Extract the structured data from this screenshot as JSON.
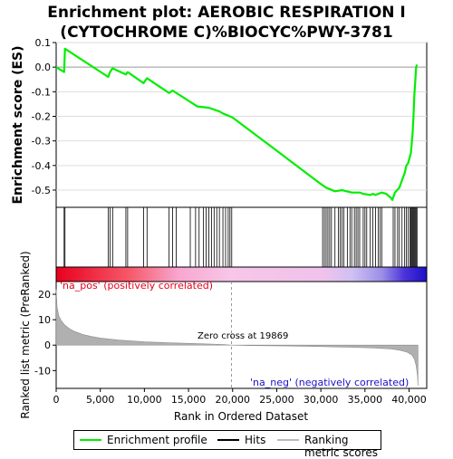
{
  "title_line1": "Enrichment plot: AEROBIC RESPIRATION I",
  "title_line2": "(CYTOCHROME C)%BIOCYC%PWY-3781",
  "chart_data": [
    {
      "type": "line",
      "ylabel": "Enrichment score (ES)",
      "ylim": [
        -0.57,
        0.1
      ],
      "yticks": [
        "0.1",
        "0.0",
        "-0.1",
        "-0.2",
        "-0.3",
        "-0.4",
        "-0.5"
      ],
      "series": [
        {
          "name": "Enrichment profile",
          "color": "#00ee00",
          "x": [
            0,
            900,
            1000,
            5900,
            6100,
            6400,
            7900,
            8100,
            9900,
            10300,
            12800,
            13200,
            16000,
            17300,
            18500,
            19000,
            19700,
            20000,
            25000,
            30000,
            30600,
            31600,
            32400,
            33500,
            34400,
            34800,
            35600,
            35900,
            36200,
            36500,
            36900,
            37400,
            37900,
            38100,
            38400,
            38900,
            39200,
            39500,
            39700,
            39900,
            40200,
            40400,
            40500,
            40600,
            40700,
            40800,
            40900
          ],
          "y": [
            0.0,
            -0.02,
            0.075,
            -0.04,
            -0.02,
            -0.005,
            -0.03,
            -0.02,
            -0.065,
            -0.045,
            -0.105,
            -0.095,
            -0.16,
            -0.165,
            -0.18,
            -0.19,
            -0.2,
            -0.205,
            -0.34,
            -0.475,
            -0.49,
            -0.505,
            -0.5,
            -0.51,
            -0.51,
            -0.515,
            -0.52,
            -0.515,
            -0.52,
            -0.515,
            -0.51,
            -0.515,
            -0.53,
            -0.54,
            -0.51,
            -0.49,
            -0.46,
            -0.43,
            -0.4,
            -0.39,
            -0.35,
            -0.27,
            -0.2,
            -0.11,
            -0.06,
            0.0,
            0.01
          ]
        }
      ],
      "hits": [
        900,
        1000,
        5900,
        6100,
        6400,
        7900,
        8100,
        9900,
        10300,
        12800,
        13200,
        13600,
        15200,
        15800,
        16200,
        16700,
        17000,
        17300,
        17600,
        17900,
        18200,
        18500,
        18900,
        19200,
        19500,
        19700,
        19900,
        30200,
        30400,
        30600,
        30800,
        31000,
        31200,
        31600,
        32000,
        32200,
        32400,
        32600,
        33000,
        33300,
        33500,
        33800,
        34000,
        34200,
        34400,
        34800,
        35000,
        35200,
        35600,
        35900,
        36200,
        36500,
        36700,
        36900,
        38200,
        38400,
        38700,
        38900,
        39200,
        39500,
        39700,
        39900,
        40100,
        40200,
        40300,
        40400,
        40500,
        40600,
        40700,
        40800,
        40900
      ]
    },
    {
      "type": "area",
      "xlabel": "Rank in Ordered Dataset",
      "ylabel": "Ranked list metric (PreRanked)",
      "xlim": [
        0,
        42000
      ],
      "ylim": [
        -17,
        25
      ],
      "xticks": [
        "0",
        "5,000",
        "10,000",
        "15,000",
        "20,000",
        "25,000",
        "30,000",
        "35,000",
        "40,000"
      ],
      "yticks": [
        "20",
        "10",
        "0",
        "-10"
      ],
      "annotations": [
        "'na_pos' (positively correlated)",
        "Zero cross at 19869",
        "'na_neg' (negatively correlated)"
      ],
      "zero_cross": 19869,
      "x": [
        0,
        100,
        300,
        600,
        1000,
        1500,
        2000,
        3000,
        4000,
        5000,
        7000,
        10000,
        13000,
        16000,
        19000,
        19869,
        22000,
        26000,
        30000,
        33000,
        36000,
        38000,
        39000,
        39800,
        40300,
        40600,
        40800,
        40950,
        41000
      ],
      "y": [
        22.0,
        15.0,
        11.5,
        9.5,
        7.8,
        6.5,
        5.5,
        4.2,
        3.4,
        2.8,
        2.0,
        1.3,
        0.9,
        0.6,
        0.25,
        0.0,
        -0.15,
        -0.3,
        -0.55,
        -0.8,
        -1.1,
        -1.5,
        -2.0,
        -2.8,
        -3.8,
        -5.5,
        -8.0,
        -12.0,
        -16.0
      ]
    }
  ],
  "legend": {
    "enrichment_label": "Enrichment profile",
    "hits_label": "Hits",
    "metric_label": "Ranking metric scores",
    "enrichment_color": "#00ee00",
    "hits_color": "#000000",
    "metric_color": "#bbbbbb"
  }
}
